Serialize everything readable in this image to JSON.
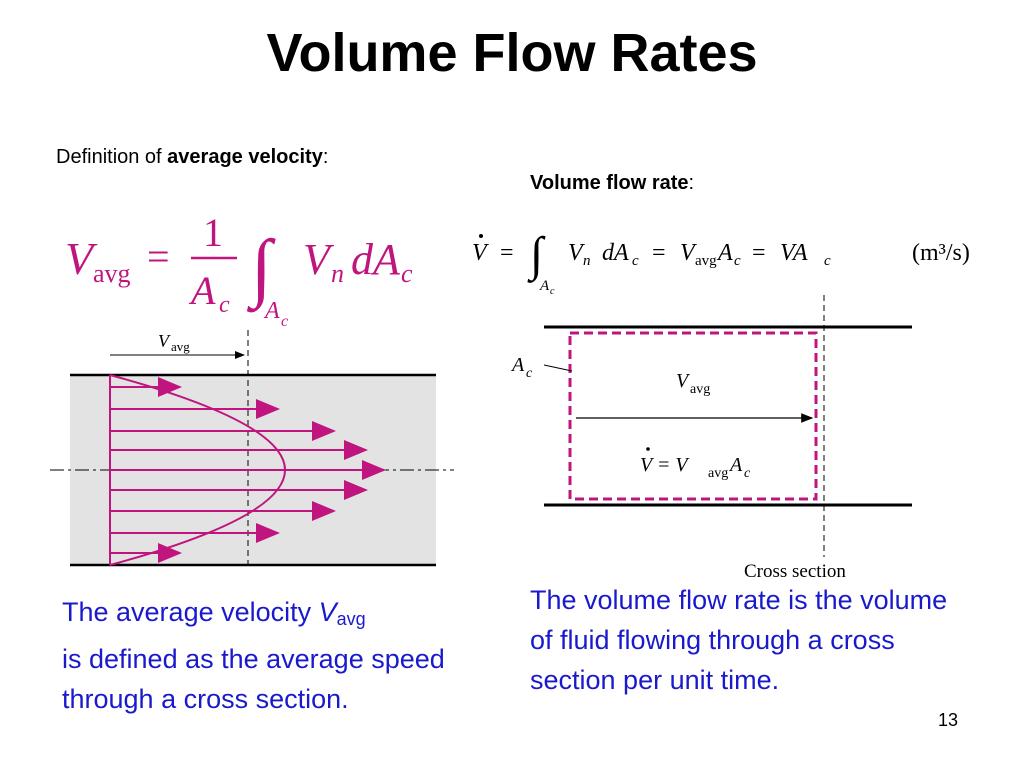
{
  "title": "Volume Flow Rates",
  "left": {
    "def_prefix": "Definition of ",
    "def_bold": "average velocity",
    "def_suffix": ":",
    "eq": {
      "lhs_main": "V",
      "lhs_sub": "avg",
      "eq_sign": "=",
      "numerator": "1",
      "den_main": "A",
      "den_sub": "c",
      "integral_sign": "∫",
      "int_lower_main": "A",
      "int_lower_sub": "c",
      "integrand_v": "V",
      "integrand_n": "n",
      "integrand_d": "dA",
      "integrand_c": "c"
    },
    "diagram_label_main": "V",
    "diagram_label_sub": "avg",
    "caption_line1_text": "The average velocity ",
    "caption_line1_sym": "V",
    "caption_line1_sub": "avg",
    "caption_rest": "is defined as the average speed through a cross section."
  },
  "right": {
    "label_bold": "Volume flow rate",
    "label_suffix": ":",
    "eq": {
      "vdot": "V",
      "eq1": "=",
      "integral_sign": "∫",
      "lower_main": "A",
      "lower_sub": "c",
      "t1_v": "V",
      "t1_n": "n",
      "t1_d": "dA",
      "t1_c": "c",
      "eq2": "=",
      "t2_v": "V",
      "t2_avg": "avg",
      "t2_a": "A",
      "t2_c": "c",
      "eq3": "=",
      "t3": "VA",
      "t3_c": "c",
      "units": "(m³/s)"
    },
    "ac_label_main": "A",
    "ac_label_sub": "c",
    "vavg_main": "V",
    "vavg_sub": "avg",
    "vdot_eq_main": "V = V",
    "vdot_eq_avg": "avg",
    "vdot_eq_a": "A",
    "vdot_eq_c": "c",
    "cross_section_label": "Cross section",
    "caption": "The volume flow rate is the volume of fluid flowing through a cross section per unit time."
  },
  "page_number": "13",
  "colors": {
    "accent": "#c0157f",
    "caption_blue": "#1a1acc",
    "pipe_fill": "#e3e3e3"
  }
}
